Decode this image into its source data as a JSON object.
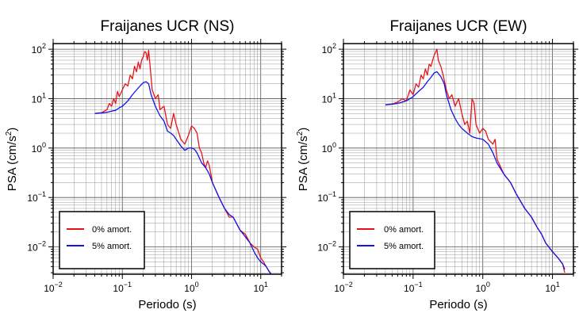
{
  "chart_data": [
    {
      "type": "line",
      "title": "Fraijanes UCR (NS)",
      "xlabel": "Periodo (s)",
      "ylabel_main": "PSA (cm/s",
      "ylabel_sup": "2",
      "ylabel_close": ")",
      "x_scale": "log",
      "y_scale": "log",
      "xlim": [
        0.01,
        20
      ],
      "ylim": [
        0.0028,
        130
      ],
      "grid": true,
      "legend_position": "bottom-left",
      "x_ticks": [
        {
          "base": "10",
          "exp": "−2"
        },
        {
          "base": "10",
          "exp": "−1"
        },
        {
          "base": "10",
          "exp": "0"
        },
        {
          "base": "10",
          "exp": "1"
        }
      ],
      "y_ticks": [
        {
          "base": "10",
          "exp": "2"
        },
        {
          "base": "10",
          "exp": "1"
        },
        {
          "base": "10",
          "exp": "0"
        },
        {
          "base": "10",
          "exp": "−1"
        },
        {
          "base": "10",
          "exp": "−2"
        }
      ],
      "series": [
        {
          "name": "0% amort.",
          "color": "#e8141c",
          "points": [
            [
              0.04,
              5
            ],
            [
              0.05,
              5.2
            ],
            [
              0.06,
              6
            ],
            [
              0.065,
              8
            ],
            [
              0.07,
              7
            ],
            [
              0.075,
              10
            ],
            [
              0.08,
              8
            ],
            [
              0.085,
              14
            ],
            [
              0.09,
              11
            ],
            [
              0.1,
              15
            ],
            [
              0.11,
              20
            ],
            [
              0.12,
              18
            ],
            [
              0.13,
              30
            ],
            [
              0.14,
              25
            ],
            [
              0.15,
              45
            ],
            [
              0.16,
              35
            ],
            [
              0.17,
              55
            ],
            [
              0.18,
              40
            ],
            [
              0.19,
              60
            ],
            [
              0.2,
              70
            ],
            [
              0.21,
              90
            ],
            [
              0.22,
              85
            ],
            [
              0.23,
              60
            ],
            [
              0.24,
              95
            ],
            [
              0.25,
              50
            ],
            [
              0.27,
              15
            ],
            [
              0.3,
              10
            ],
            [
              0.33,
              12
            ],
            [
              0.35,
              6
            ],
            [
              0.4,
              7
            ],
            [
              0.45,
              3
            ],
            [
              0.5,
              2.5
            ],
            [
              0.55,
              5
            ],
            [
              0.6,
              3
            ],
            [
              0.7,
              1.5
            ],
            [
              0.8,
              1.2
            ],
            [
              0.9,
              1.8
            ],
            [
              1,
              2.8
            ],
            [
              1.1,
              2.5
            ],
            [
              1.2,
              2
            ],
            [
              1.3,
              1
            ],
            [
              1.4,
              0.8
            ],
            [
              1.5,
              0.5
            ],
            [
              1.6,
              0.4
            ],
            [
              1.7,
              0.55
            ],
            [
              1.8,
              0.45
            ],
            [
              2,
              0.2
            ],
            [
              2.5,
              0.1
            ],
            [
              3,
              0.06
            ],
            [
              3.5,
              0.04
            ],
            [
              4,
              0.04
            ],
            [
              5,
              0.022
            ],
            [
              6,
              0.018
            ],
            [
              7,
              0.012
            ],
            [
              8,
              0.01
            ],
            [
              9,
              0.009
            ],
            [
              10,
              0.006
            ],
            [
              11,
              0.005
            ],
            [
              12,
              0.004
            ],
            [
              13,
              0.0033
            ],
            [
              14,
              0.0028
            ]
          ]
        },
        {
          "name": "5% amort.",
          "color": "#1414e8",
          "points": [
            [
              0.04,
              5
            ],
            [
              0.05,
              5.1
            ],
            [
              0.06,
              5.3
            ],
            [
              0.07,
              5.6
            ],
            [
              0.08,
              5.8
            ],
            [
              0.09,
              6.5
            ],
            [
              0.1,
              7
            ],
            [
              0.12,
              9
            ],
            [
              0.14,
              12
            ],
            [
              0.16,
              15
            ],
            [
              0.18,
              18
            ],
            [
              0.2,
              21
            ],
            [
              0.22,
              22
            ],
            [
              0.24,
              20
            ],
            [
              0.26,
              12
            ],
            [
              0.3,
              7
            ],
            [
              0.35,
              4.5
            ],
            [
              0.4,
              3.5
            ],
            [
              0.45,
              2.2
            ],
            [
              0.5,
              2
            ],
            [
              0.55,
              1.8
            ],
            [
              0.6,
              1.5
            ],
            [
              0.7,
              1.1
            ],
            [
              0.8,
              0.9
            ],
            [
              0.9,
              1
            ],
            [
              1,
              1
            ],
            [
              1.1,
              0.95
            ],
            [
              1.2,
              0.8
            ],
            [
              1.4,
              0.5
            ],
            [
              1.6,
              0.4
            ],
            [
              1.8,
              0.3
            ],
            [
              2,
              0.2
            ],
            [
              2.5,
              0.1
            ],
            [
              3,
              0.06
            ],
            [
              3.5,
              0.045
            ],
            [
              4,
              0.04
            ],
            [
              5,
              0.022
            ],
            [
              6,
              0.016
            ],
            [
              7,
              0.012
            ],
            [
              8,
              0.008
            ],
            [
              9,
              0.006
            ],
            [
              10,
              0.005
            ],
            [
              11,
              0.0045
            ],
            [
              12,
              0.004
            ],
            [
              13,
              0.0033
            ],
            [
              14,
              0.0029
            ]
          ]
        }
      ]
    },
    {
      "type": "line",
      "title": "Fraijanes UCR (EW)",
      "xlabel": "Periodo (s)",
      "ylabel_main": "PSA (cm/s",
      "ylabel_sup": "2",
      "ylabel_close": ")",
      "x_scale": "log",
      "y_scale": "log",
      "xlim": [
        0.01,
        20
      ],
      "ylim": [
        0.0028,
        130
      ],
      "grid": true,
      "legend_position": "bottom-left",
      "x_ticks": [
        {
          "base": "10",
          "exp": "−2"
        },
        {
          "base": "10",
          "exp": "−1"
        },
        {
          "base": "10",
          "exp": "0"
        },
        {
          "base": "10",
          "exp": "1"
        }
      ],
      "y_ticks": [
        {
          "base": "10",
          "exp": "2"
        },
        {
          "base": "10",
          "exp": "1"
        },
        {
          "base": "10",
          "exp": "0"
        },
        {
          "base": "10",
          "exp": "−1"
        },
        {
          "base": "10",
          "exp": "−2"
        }
      ],
      "series": [
        {
          "name": "0% amort.",
          "color": "#e8141c",
          "points": [
            [
              0.04,
              7.5
            ],
            [
              0.05,
              7.8
            ],
            [
              0.06,
              8.5
            ],
            [
              0.07,
              10
            ],
            [
              0.08,
              9
            ],
            [
              0.09,
              15
            ],
            [
              0.1,
              12
            ],
            [
              0.11,
              20
            ],
            [
              0.12,
              17
            ],
            [
              0.13,
              30
            ],
            [
              0.14,
              25
            ],
            [
              0.15,
              40
            ],
            [
              0.16,
              30
            ],
            [
              0.17,
              50
            ],
            [
              0.18,
              45
            ],
            [
              0.2,
              75
            ],
            [
              0.22,
              100
            ],
            [
              0.23,
              60
            ],
            [
              0.25,
              45
            ],
            [
              0.27,
              30
            ],
            [
              0.3,
              15
            ],
            [
              0.33,
              10
            ],
            [
              0.36,
              12
            ],
            [
              0.4,
              7
            ],
            [
              0.45,
              10
            ],
            [
              0.5,
              5
            ],
            [
              0.55,
              3
            ],
            [
              0.6,
              3.5
            ],
            [
              0.65,
              2
            ],
            [
              0.7,
              10
            ],
            [
              0.75,
              8
            ],
            [
              0.8,
              3
            ],
            [
              0.9,
              2
            ],
            [
              1,
              2.5
            ],
            [
              1.1,
              2.2
            ],
            [
              1.2,
              1.5
            ],
            [
              1.4,
              1.2
            ],
            [
              1.5,
              1.5
            ],
            [
              1.6,
              0.6
            ],
            [
              2,
              0.3
            ],
            [
              2.5,
              0.2
            ],
            [
              3,
              0.12
            ],
            [
              4,
              0.06
            ],
            [
              5,
              0.04
            ],
            [
              6,
              0.025
            ],
            [
              7,
              0.018
            ],
            [
              8,
              0.012
            ],
            [
              10,
              0.008
            ],
            [
              12,
              0.006
            ],
            [
              14,
              0.0045
            ],
            [
              15,
              0.003
            ]
          ]
        },
        {
          "name": "5% amort.",
          "color": "#1414e8",
          "points": [
            [
              0.04,
              7.5
            ],
            [
              0.05,
              7.7
            ],
            [
              0.06,
              8
            ],
            [
              0.07,
              8.5
            ],
            [
              0.08,
              9
            ],
            [
              0.1,
              11
            ],
            [
              0.12,
              14
            ],
            [
              0.14,
              17
            ],
            [
              0.16,
              22
            ],
            [
              0.18,
              27
            ],
            [
              0.2,
              33
            ],
            [
              0.22,
              35
            ],
            [
              0.25,
              28
            ],
            [
              0.28,
              20
            ],
            [
              0.3,
              12
            ],
            [
              0.35,
              6
            ],
            [
              0.4,
              4
            ],
            [
              0.45,
              3
            ],
            [
              0.5,
              2.5
            ],
            [
              0.6,
              2
            ],
            [
              0.7,
              1.7
            ],
            [
              0.8,
              1.6
            ],
            [
              1,
              1.5
            ],
            [
              1.2,
              1.2
            ],
            [
              1.4,
              0.8
            ],
            [
              1.6,
              0.5
            ],
            [
              2,
              0.3
            ],
            [
              2.5,
              0.2
            ],
            [
              3,
              0.12
            ],
            [
              4,
              0.06
            ],
            [
              5,
              0.04
            ],
            [
              6,
              0.025
            ],
            [
              7,
              0.018
            ],
            [
              8,
              0.012
            ],
            [
              10,
              0.008
            ],
            [
              12,
              0.006
            ],
            [
              14,
              0.0045
            ],
            [
              15,
              0.0035
            ]
          ]
        }
      ]
    }
  ]
}
